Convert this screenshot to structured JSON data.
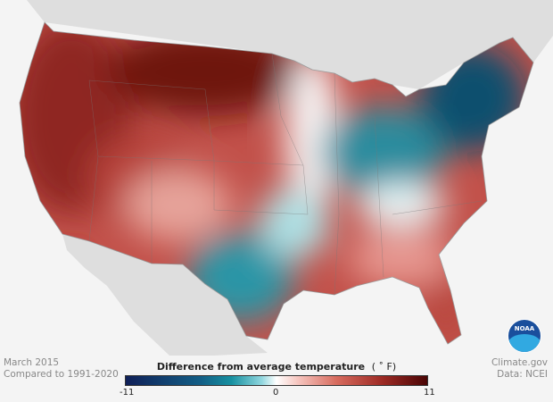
{
  "caption": {
    "date": "March 2015",
    "baseline": "Compared to 1991-2020"
  },
  "credit": {
    "site": "Climate.gov",
    "source": "Data: NCEI"
  },
  "legend": {
    "title": "Difference from average temperature",
    "unit": "( ˚ F)",
    "min": "-11",
    "mid": "0",
    "max": "11"
  },
  "logo": {
    "text": "NOAA"
  },
  "colors": {
    "cold": "#0f1f57",
    "neutral": "#ffffff",
    "warm": "#4a0505",
    "land": "#dedede",
    "water": "#f4f4f4"
  }
}
